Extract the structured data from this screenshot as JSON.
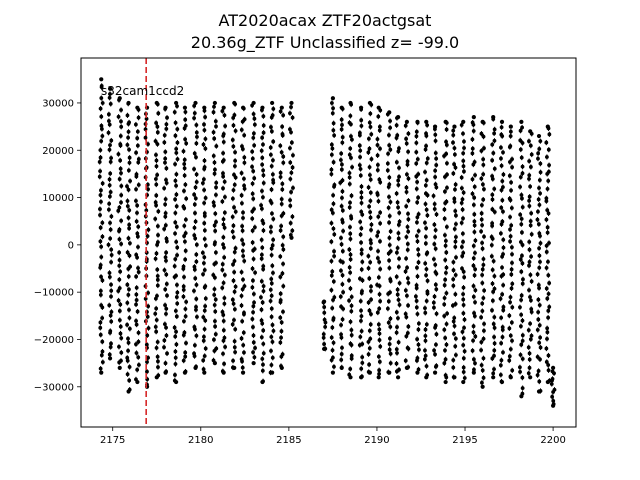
{
  "chart_data": {
    "type": "scatter",
    "title": "AT2020acax  ZTF20actgsat",
    "subtitle": "20.36g_ZTF Unclassified z= -99.0",
    "xlabel": "",
    "ylabel": "",
    "xlim": [
      2173.2,
      2201.3
    ],
    "ylim": [
      -38500,
      39500
    ],
    "xticks": [
      2175,
      2180,
      2185,
      2190,
      2195,
      2200
    ],
    "yticks": [
      -30000,
      -20000,
      -10000,
      0,
      10000,
      20000,
      30000
    ],
    "xtick_labels": [
      "2175",
      "2180",
      "2185",
      "2190",
      "2195",
      "2200"
    ],
    "ytick_labels": [
      "−30000",
      "−20000",
      "−10000",
      "0",
      "10000",
      "20000",
      "30000"
    ],
    "grid": false,
    "annotation": "s32cam1ccd2",
    "vline": {
      "x": 2176.9,
      "color": "#d62728",
      "style": "dashed"
    },
    "point_color": "#000000",
    "segments": [
      {
        "x_start": 2174.2,
        "x_end": 2185.2
      },
      {
        "x_start": 2186.9,
        "x_end": 2200.1
      }
    ],
    "clusters": [
      {
        "x": 2174.35,
        "ymin": -27000,
        "ymax": 35000
      },
      {
        "x": 2174.85,
        "ymin": -24000,
        "ymax": 33000
      },
      {
        "x": 2175.4,
        "ymin": -26000,
        "ymax": 31000
      },
      {
        "x": 2175.9,
        "ymin": -31000,
        "ymax": 30000
      },
      {
        "x": 2176.4,
        "ymin": -29000,
        "ymax": 29000
      },
      {
        "x": 2176.95,
        "ymin": -30000,
        "ymax": 29000
      },
      {
        "x": 2177.5,
        "ymin": -28000,
        "ymax": 30000
      },
      {
        "x": 2178.0,
        "ymin": -27000,
        "ymax": 29000
      },
      {
        "x": 2178.6,
        "ymin": -29000,
        "ymax": 30000
      },
      {
        "x": 2179.1,
        "ymin": -27000,
        "ymax": 29000
      },
      {
        "x": 2179.7,
        "ymin": -26000,
        "ymax": 30000
      },
      {
        "x": 2180.2,
        "ymin": -27000,
        "ymax": 29000
      },
      {
        "x": 2180.8,
        "ymin": -25000,
        "ymax": 30000
      },
      {
        "x": 2181.3,
        "ymin": -27000,
        "ymax": 29000
      },
      {
        "x": 2181.9,
        "ymin": -26000,
        "ymax": 30000
      },
      {
        "x": 2182.4,
        "ymin": -27000,
        "ymax": 29000
      },
      {
        "x": 2183.0,
        "ymin": -25000,
        "ymax": 30000
      },
      {
        "x": 2183.5,
        "ymin": -29000,
        "ymax": 29000
      },
      {
        "x": 2184.05,
        "ymin": -27000,
        "ymax": 30000
      },
      {
        "x": 2184.6,
        "ymin": -26000,
        "ymax": 29000
      },
      {
        "x": 2185.15,
        "ymin": 1500,
        "ymax": 30000
      },
      {
        "x": 2187.0,
        "ymin": -22000,
        "ymax": -12000
      },
      {
        "x": 2187.5,
        "ymin": -27000,
        "ymax": 31000
      },
      {
        "x": 2188.0,
        "ymin": -26000,
        "ymax": 29000
      },
      {
        "x": 2188.5,
        "ymin": -28000,
        "ymax": 30000
      },
      {
        "x": 2189.1,
        "ymin": -28000,
        "ymax": 29000
      },
      {
        "x": 2189.6,
        "ymin": -27000,
        "ymax": 30000
      },
      {
        "x": 2190.1,
        "ymin": -28000,
        "ymax": 29000
      },
      {
        "x": 2190.7,
        "ymin": -27000,
        "ymax": 28000
      },
      {
        "x": 2191.2,
        "ymin": -28000,
        "ymax": 27000
      },
      {
        "x": 2191.7,
        "ymin": -26000,
        "ymax": 26000
      },
      {
        "x": 2192.3,
        "ymin": -27000,
        "ymax": 26000
      },
      {
        "x": 2192.8,
        "ymin": -28000,
        "ymax": 26000
      },
      {
        "x": 2193.3,
        "ymin": -27000,
        "ymax": 25000
      },
      {
        "x": 2193.9,
        "ymin": -29000,
        "ymax": 26000
      },
      {
        "x": 2194.4,
        "ymin": -28000,
        "ymax": 25000
      },
      {
        "x": 2194.9,
        "ymin": -29000,
        "ymax": 26000
      },
      {
        "x": 2195.5,
        "ymin": -27000,
        "ymax": 27000
      },
      {
        "x": 2196.0,
        "ymin": -30000,
        "ymax": 26000
      },
      {
        "x": 2196.6,
        "ymin": -28000,
        "ymax": 27000
      },
      {
        "x": 2197.1,
        "ymin": -29000,
        "ymax": 26000
      },
      {
        "x": 2197.6,
        "ymin": -28000,
        "ymax": 25000
      },
      {
        "x": 2198.2,
        "ymin": -32000,
        "ymax": 26000
      },
      {
        "x": 2198.7,
        "ymin": -28000,
        "ymax": 24000
      },
      {
        "x": 2199.2,
        "ymin": -31000,
        "ymax": 23000
      },
      {
        "x": 2199.7,
        "ymin": -29000,
        "ymax": 25000
      },
      {
        "x": 2200.0,
        "ymin": -34000,
        "ymax": -26000
      }
    ]
  }
}
